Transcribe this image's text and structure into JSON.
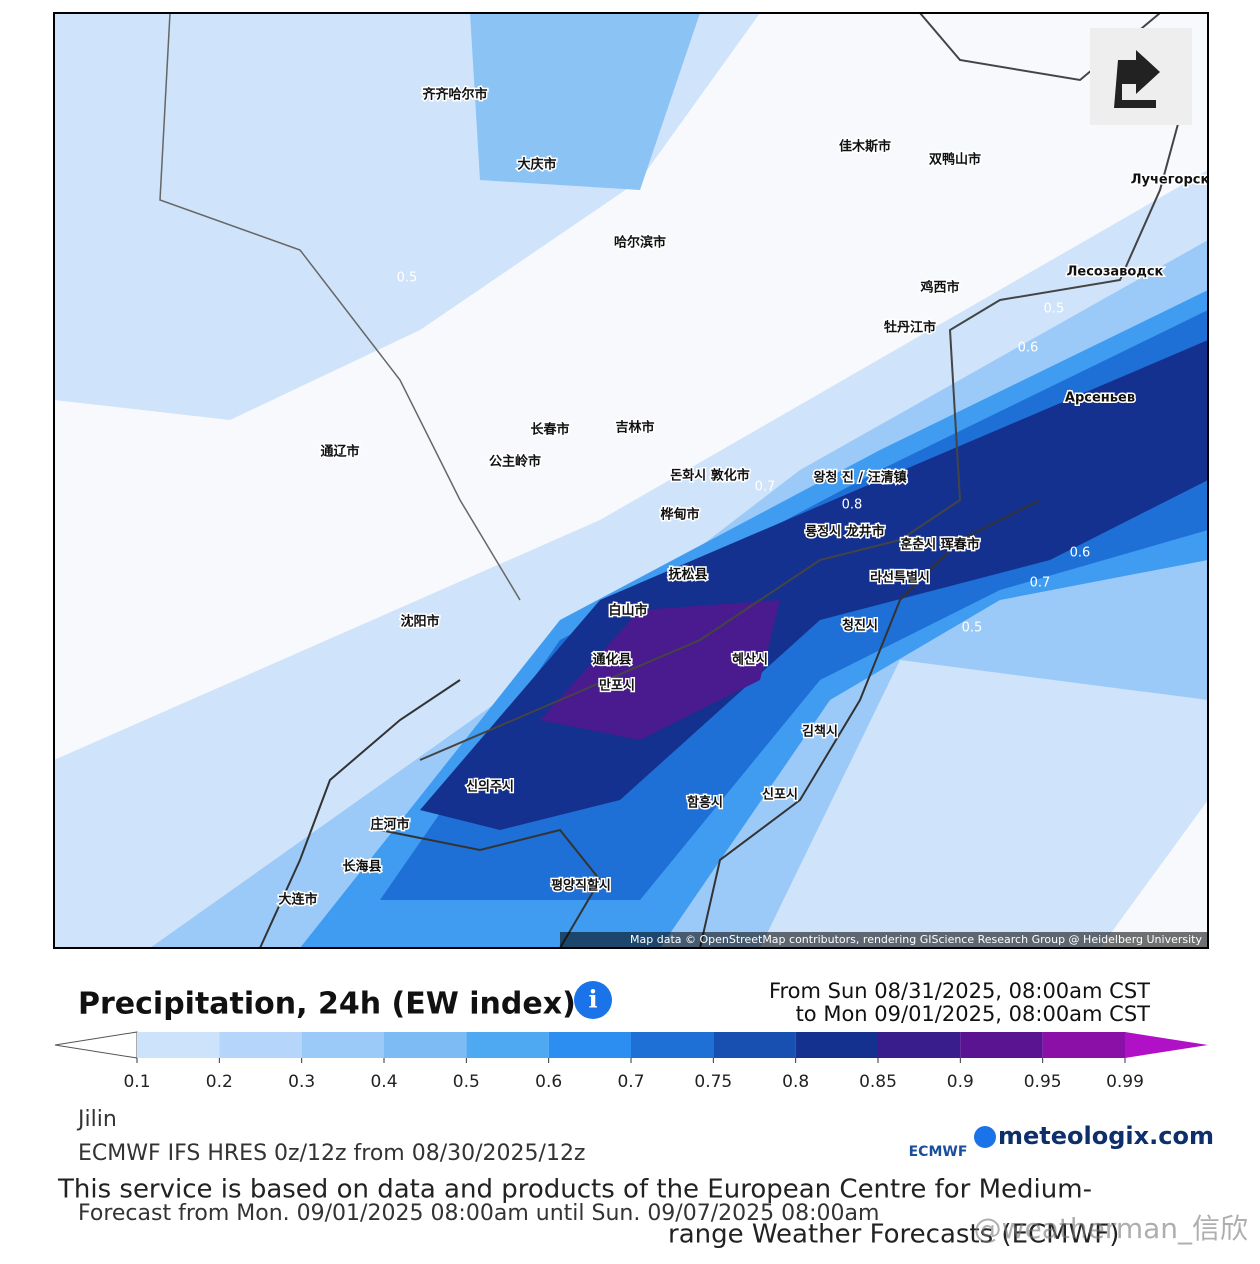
{
  "map": {
    "labels": [
      "齐齐哈尔市",
      "大庆市",
      "哈尔滨市",
      "佳木斯市",
      "双鸭山市",
      "鸡西市",
      "牡丹江市",
      "长春市",
      "吉林市",
      "公主岭市",
      "通辽市",
      "沈阳市",
      "白山市",
      "通化县",
      "大连市",
      "长海县",
      "庄河市",
      "평양직할시",
      "만포시",
      "신의주시",
      "혜산시",
      "청진시",
      "김책시",
      "함흥시",
      "신포시",
      "라선특별시",
      "훈춘시 珲春市",
      "룡정시 龙井市",
      "왕청 진 / 汪清镇",
      "돈화시 敦化市",
      "抚松县",
      "桦甸市",
      "Арсеньев",
      "Лесозаводск",
      "Лучегорск"
    ],
    "contour_labels": [
      0.5,
      0.5,
      0.6,
      0.7,
      0.8,
      0.6,
      0.7,
      0.5
    ],
    "attribution": "Map data © OpenStreetMap contributors, rendering GIScience Research Group @ Heidelberg University"
  },
  "legend": {
    "title": "Precipitation, 24h (EW index)",
    "from": "From Sun 08/31/2025, 08:00am CST",
    "to": "to Mon 09/01/2025, 08:00am CST",
    "ticks": [
      0.1,
      0.2,
      0.3,
      0.4,
      0.5,
      0.6,
      0.7,
      0.75,
      0.8,
      0.85,
      0.9,
      0.95,
      0.99
    ],
    "colors": [
      "#cde3fb",
      "#b5d6fa",
      "#9ccaf8",
      "#7dbbf5",
      "#4fa8f2",
      "#2b8ef0",
      "#1e6fd6",
      "#1750b0",
      "#14318f",
      "#3a1d8c",
      "#5a1391",
      "#8a10a8"
    ],
    "under_color": "#ffffff",
    "over_color": "#b011c6"
  },
  "footer": {
    "region": "Jilin",
    "model": "ECMWF IFS HRES 0z/12z from 08/30/2025/12z",
    "notice_1": "This service is based on data and products of the European Centre for Medium-",
    "forecast": "Forecast from Mon. 09/01/2025 08:00am until Sun. 09/07/2025 08:00am",
    "notice_2": "range Weather Forecasts (ECMWF)"
  },
  "logos": {
    "ecmwf": "ECMWF",
    "meteologix": "meteologix.com"
  },
  "watermark": "@weatherman_信欣"
}
